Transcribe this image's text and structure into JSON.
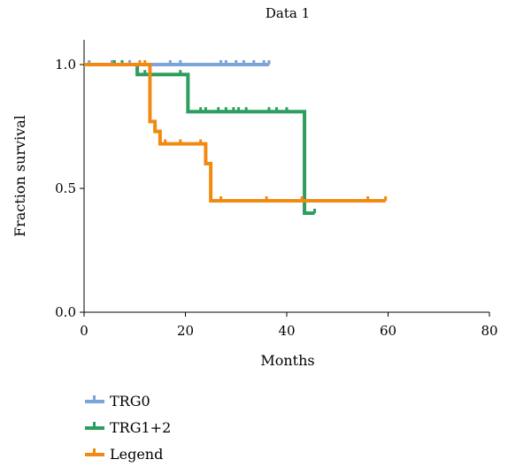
{
  "chart_data": {
    "type": "line",
    "title": "Data 1",
    "xlabel": "Months",
    "ylabel": "Fraction survival",
    "xlim": [
      0,
      80
    ],
    "ylim": [
      0,
      1.1
    ],
    "x_ticks": [
      "0",
      "20",
      "40",
      "60",
      "80"
    ],
    "y_ticks": [
      "0.0",
      "0.5",
      "1.0"
    ],
    "grid": false,
    "legend_position": "bottom-left",
    "series": [
      {
        "name": "TRG0",
        "color": "#7ba4d8",
        "steps": [
          [
            0,
            1.0
          ],
          [
            36.5,
            1.0
          ]
        ],
        "censored": [
          1,
          5.5,
          9,
          17,
          19,
          27,
          28,
          30,
          31.5,
          33.5,
          35.5,
          36.5
        ]
      },
      {
        "name": "TRG1+2",
        "color": "#2e9e5e",
        "steps": [
          [
            0,
            1.0
          ],
          [
            10.5,
            1.0
          ],
          [
            10.5,
            0.96
          ],
          [
            20.5,
            0.96
          ],
          [
            20.5,
            0.81
          ],
          [
            43.5,
            0.81
          ],
          [
            43.5,
            0.4
          ],
          [
            45.5,
            0.4
          ]
        ],
        "censored": [
          6,
          7.5,
          12,
          19,
          23,
          24,
          26.5,
          28,
          29.5,
          30.5,
          32,
          36.5,
          38,
          40,
          45.5
        ]
      },
      {
        "name": "Legend",
        "color": "#f28a12",
        "steps": [
          [
            0,
            1.0
          ],
          [
            13,
            1.0
          ],
          [
            13,
            0.77
          ],
          [
            14,
            0.77
          ],
          [
            14,
            0.73
          ],
          [
            15,
            0.73
          ],
          [
            15,
            0.68
          ],
          [
            24,
            0.68
          ],
          [
            24,
            0.6
          ],
          [
            25,
            0.6
          ],
          [
            25,
            0.45
          ],
          [
            59.5,
            0.45
          ]
        ],
        "censored": [
          11,
          12,
          16,
          19,
          23,
          27,
          36,
          43,
          56,
          59.5
        ]
      }
    ]
  }
}
